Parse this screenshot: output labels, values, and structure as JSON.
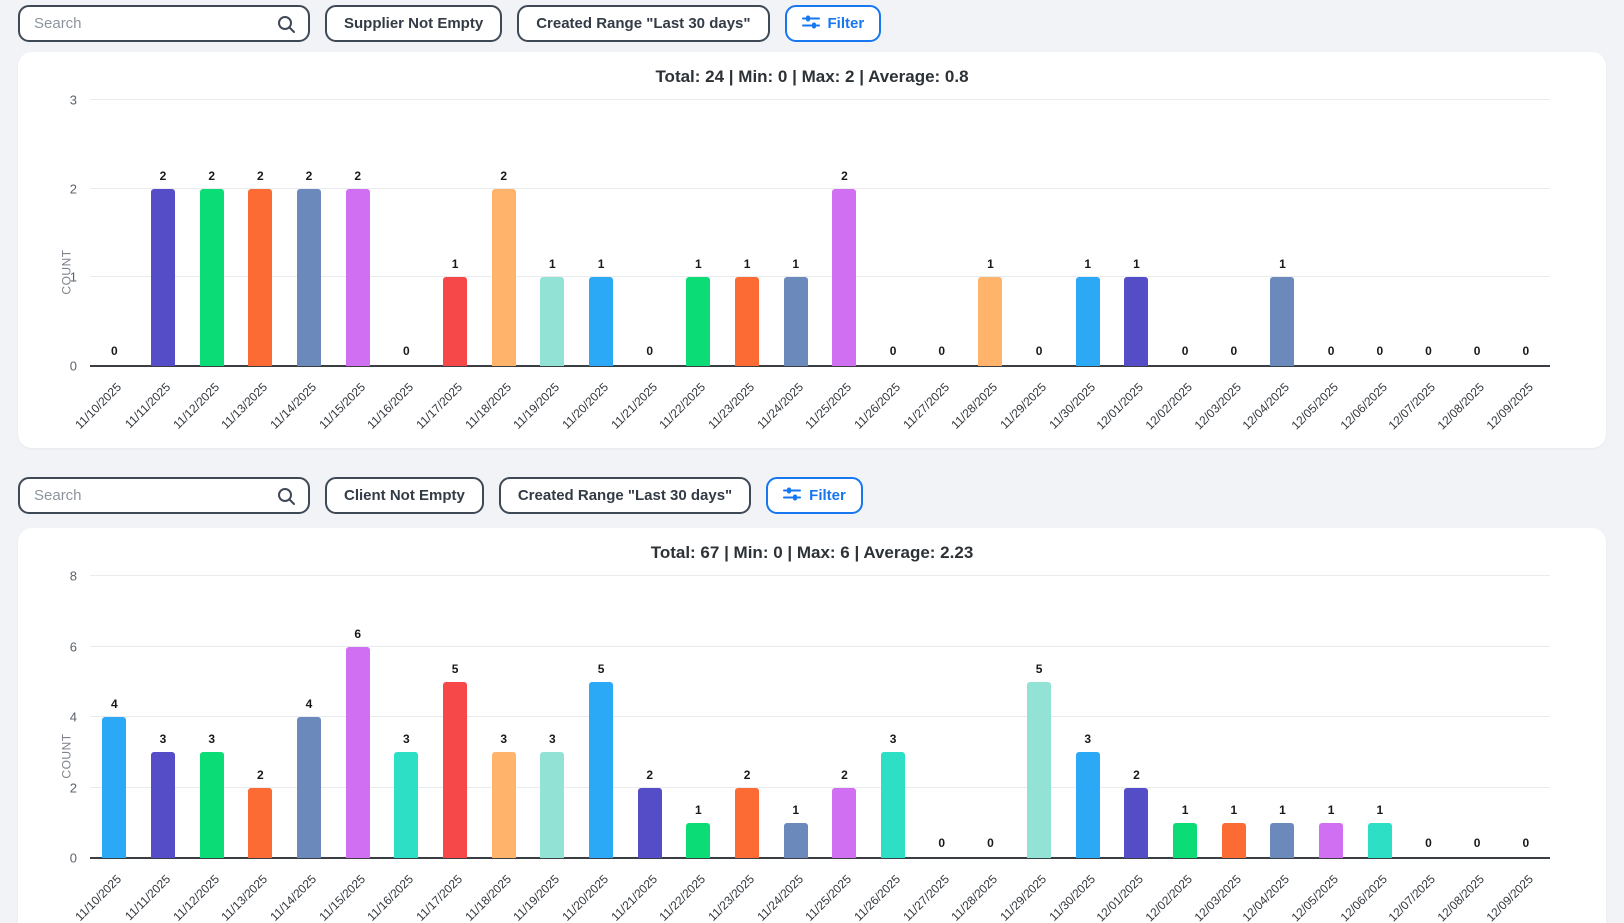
{
  "accent_color": "#1677f0",
  "palette": [
    "#2ba9f7",
    "#554cc7",
    "#0bdc75",
    "#fc6b33",
    "#6b8abb",
    "#d06ff2",
    "#2cdfc5",
    "#f64848",
    "#ffb36b",
    "#93e2d6"
  ],
  "toolbar_top": {
    "search_placeholder": "Search",
    "chips": [
      "Supplier Not Empty",
      "Created Range \"Last 30 days\""
    ],
    "filter_label": "Filter"
  },
  "toolbar_bottom": {
    "search_placeholder": "Search",
    "chips": [
      "Client Not Empty",
      "Created Range \"Last 30 days\""
    ],
    "filter_label": "Filter"
  },
  "chart_data": [
    {
      "type": "bar",
      "title": "Total: 24 | Min: 0 | Max: 2 | Average: 0.8",
      "ylabel": "COUNT",
      "xlabel": "",
      "ylim": [
        0,
        3
      ],
      "yticks": [
        0,
        1,
        2,
        3
      ],
      "grid": true,
      "legend": false,
      "categories": [
        "11/10/2025",
        "11/11/2025",
        "11/12/2025",
        "11/13/2025",
        "11/14/2025",
        "11/15/2025",
        "11/16/2025",
        "11/17/2025",
        "11/18/2025",
        "11/19/2025",
        "11/20/2025",
        "11/21/2025",
        "11/22/2025",
        "11/23/2025",
        "11/24/2025",
        "11/25/2025",
        "11/26/2025",
        "11/27/2025",
        "11/28/2025",
        "11/29/2025",
        "11/30/2025",
        "12/01/2025",
        "12/02/2025",
        "12/03/2025",
        "12/04/2025",
        "12/05/2025",
        "12/06/2025",
        "12/07/2025",
        "12/08/2025",
        "12/09/2025"
      ],
      "values": [
        0,
        2,
        2,
        2,
        2,
        2,
        0,
        1,
        2,
        1,
        1,
        0,
        1,
        1,
        1,
        2,
        0,
        0,
        1,
        0,
        1,
        1,
        0,
        0,
        1,
        0,
        0,
        0,
        0,
        0
      ]
    },
    {
      "type": "bar",
      "title": "Total: 67 | Min: 0 | Max: 6 | Average: 2.23",
      "ylabel": "COUNT",
      "xlabel": "",
      "ylim": [
        0,
        8
      ],
      "yticks": [
        0,
        2,
        4,
        6,
        8
      ],
      "grid": true,
      "legend": false,
      "categories": [
        "11/10/2025",
        "11/11/2025",
        "11/12/2025",
        "11/13/2025",
        "11/14/2025",
        "11/15/2025",
        "11/16/2025",
        "11/17/2025",
        "11/18/2025",
        "11/19/2025",
        "11/20/2025",
        "11/21/2025",
        "11/22/2025",
        "11/23/2025",
        "11/24/2025",
        "11/25/2025",
        "11/26/2025",
        "11/27/2025",
        "11/28/2025",
        "11/29/2025",
        "11/30/2025",
        "12/01/2025",
        "12/02/2025",
        "12/03/2025",
        "12/04/2025",
        "12/05/2025",
        "12/06/2025",
        "12/07/2025",
        "12/08/2025",
        "12/09/2025"
      ],
      "values": [
        4,
        3,
        3,
        2,
        4,
        6,
        3,
        5,
        3,
        3,
        5,
        2,
        1,
        2,
        1,
        2,
        3,
        0,
        0,
        5,
        3,
        2,
        1,
        1,
        1,
        1,
        1,
        0,
        0,
        0
      ]
    }
  ]
}
